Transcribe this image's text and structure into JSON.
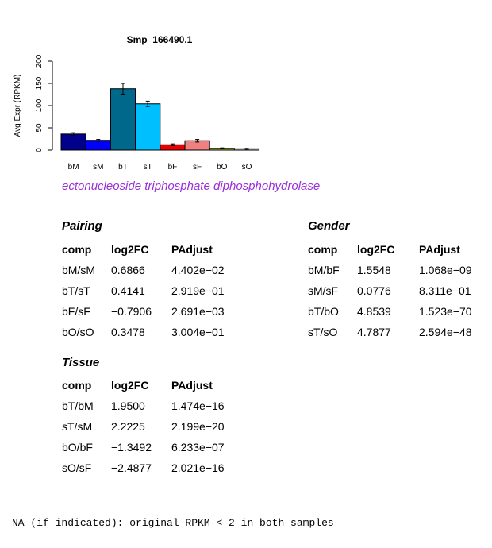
{
  "chart_data": {
    "type": "bar",
    "title": "Smp_166490.1",
    "ylabel": "Avg Expr (RPKM)",
    "xlabel": "",
    "ylim": [
      0,
      200
    ],
    "yticks": [
      0,
      50,
      100,
      150,
      200
    ],
    "categories": [
      "bM",
      "sM",
      "bT",
      "sT",
      "bF",
      "sF",
      "bO",
      "sO"
    ],
    "values": [
      36,
      22,
      138,
      104,
      12,
      21,
      4,
      3
    ],
    "errors": [
      3,
      2,
      12,
      6,
      2,
      3,
      1,
      1
    ],
    "colors": [
      "#00008b",
      "#0000ff",
      "#00688b",
      "#00bfff",
      "#ee0000",
      "#f08080",
      "#cdcd00",
      "#bdbdbd"
    ]
  },
  "gene_name": "ectonucleoside triphosphate diphosphohydrolase",
  "tables": {
    "pairing": {
      "title": "Pairing",
      "headers": [
        "comp",
        "log2FC",
        "PAdjust"
      ],
      "rows": [
        [
          "bM/sM",
          "0.6866",
          "4.402e−02"
        ],
        [
          "bT/sT",
          "0.4141",
          "2.919e−01"
        ],
        [
          "bF/sF",
          "−0.7906",
          "2.691e−03"
        ],
        [
          "bO/sO",
          "0.3478",
          "3.004e−01"
        ]
      ]
    },
    "gender": {
      "title": "Gender",
      "headers": [
        "comp",
        "log2FC",
        "PAdjust"
      ],
      "rows": [
        [
          "bM/bF",
          "1.5548",
          "1.068e−09"
        ],
        [
          "sM/sF",
          "0.0776",
          "8.311e−01"
        ],
        [
          "bT/bO",
          "4.8539",
          "1.523e−70"
        ],
        [
          "sT/sO",
          "4.7877",
          "2.594e−48"
        ]
      ]
    },
    "tissue": {
      "title": "Tissue",
      "headers": [
        "comp",
        "log2FC",
        "PAdjust"
      ],
      "rows": [
        [
          "bT/bM",
          "1.9500",
          "1.474e−16"
        ],
        [
          "sT/sM",
          "2.2225",
          "2.199e−20"
        ],
        [
          "bO/bF",
          "−1.3492",
          "6.233e−07"
        ],
        [
          "sO/sF",
          "−2.4877",
          "2.021e−16"
        ]
      ]
    }
  },
  "footnote": "NA (if indicated): original RPKM < 2 in both samples"
}
